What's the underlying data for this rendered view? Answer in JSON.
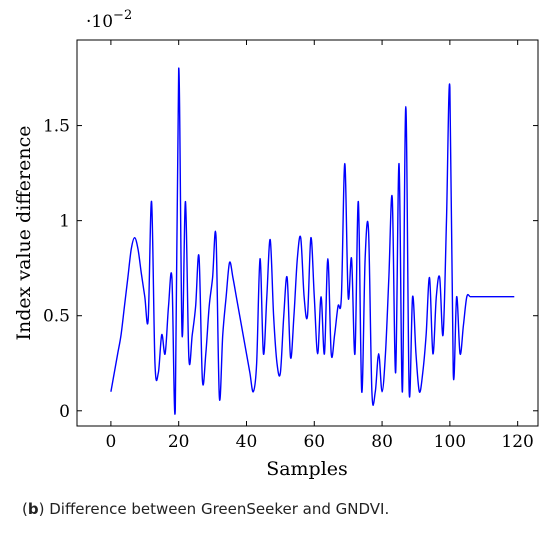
{
  "chart_data": {
    "type": "line",
    "xlabel": "Samples",
    "ylabel": "Index value difference",
    "y_scale_note": {
      "base": "·10",
      "exponent": "−2"
    },
    "xlim": [
      -10,
      126
    ],
    "ylim": [
      -0.08,
      1.95
    ],
    "xticks": [
      0,
      20,
      40,
      60,
      80,
      100,
      120
    ],
    "yticks": [
      0,
      0.5,
      1,
      1.5
    ],
    "ytick_labels": [
      "0",
      "0.5",
      "1",
      "1.5"
    ],
    "grid": false,
    "series": [
      {
        "color": "#0000ff",
        "x": [
          0,
          1,
          2,
          3,
          4,
          5,
          6,
          7,
          8,
          9,
          10,
          11,
          12,
          13,
          14,
          15,
          16,
          17,
          18,
          19,
          20,
          21,
          22,
          23,
          24,
          25,
          26,
          27,
          28,
          29,
          30,
          31,
          32,
          33,
          34,
          35,
          36,
          37,
          38,
          39,
          40,
          41,
          42,
          43,
          44,
          45,
          46,
          47,
          48,
          49,
          50,
          51,
          52,
          53,
          54,
          55,
          56,
          57,
          58,
          59,
          60,
          61,
          62,
          63,
          64,
          65,
          66,
          67,
          68,
          69,
          70,
          71,
          72,
          73,
          74,
          75,
          76,
          77,
          78,
          79,
          80,
          81,
          82,
          83,
          84,
          85,
          86,
          87,
          88,
          89,
          90,
          91,
          92,
          93,
          94,
          95,
          96,
          97,
          98,
          99,
          100,
          101,
          102,
          103,
          104,
          105,
          106,
          107,
          108,
          109,
          110,
          111,
          112,
          113,
          114,
          115,
          116,
          117,
          118,
          119
        ],
        "values": [
          0.1,
          0.2,
          0.3,
          0.4,
          0.55,
          0.7,
          0.85,
          0.91,
          0.85,
          0.72,
          0.6,
          0.48,
          1.1,
          0.25,
          0.2,
          0.4,
          0.3,
          0.55,
          0.7,
          0.01,
          1.8,
          0.4,
          1.1,
          0.28,
          0.4,
          0.55,
          0.81,
          0.16,
          0.3,
          0.55,
          0.7,
          0.92,
          0.07,
          0.4,
          0.6,
          0.78,
          0.7,
          0.6,
          0.5,
          0.4,
          0.3,
          0.2,
          0.1,
          0.25,
          0.8,
          0.3,
          0.6,
          0.9,
          0.5,
          0.25,
          0.2,
          0.5,
          0.7,
          0.28,
          0.5,
          0.8,
          0.91,
          0.6,
          0.5,
          0.91,
          0.6,
          0.3,
          0.6,
          0.3,
          0.8,
          0.3,
          0.4,
          0.55,
          0.6,
          1.3,
          0.6,
          0.8,
          0.3,
          1.1,
          0.1,
          0.8,
          0.95,
          0.1,
          0.1,
          0.3,
          0.1,
          0.3,
          0.7,
          1.12,
          0.2,
          1.3,
          0.1,
          1.6,
          0.1,
          0.6,
          0.3,
          0.1,
          0.2,
          0.4,
          0.7,
          0.3,
          0.6,
          0.7,
          0.4,
          1.0,
          1.7,
          0.2,
          0.6,
          0.3,
          0.45,
          0.6,
          0.6,
          0.6,
          0.6,
          0.6,
          0.6,
          0.6,
          0.6,
          0.6,
          0.6,
          0.6,
          0.6,
          0.6,
          0.6,
          0.6
        ]
      }
    ]
  },
  "caption": {
    "letter": "b",
    "open": "(",
    "text": ") Difference between GreenSeeker and GNDVI."
  }
}
